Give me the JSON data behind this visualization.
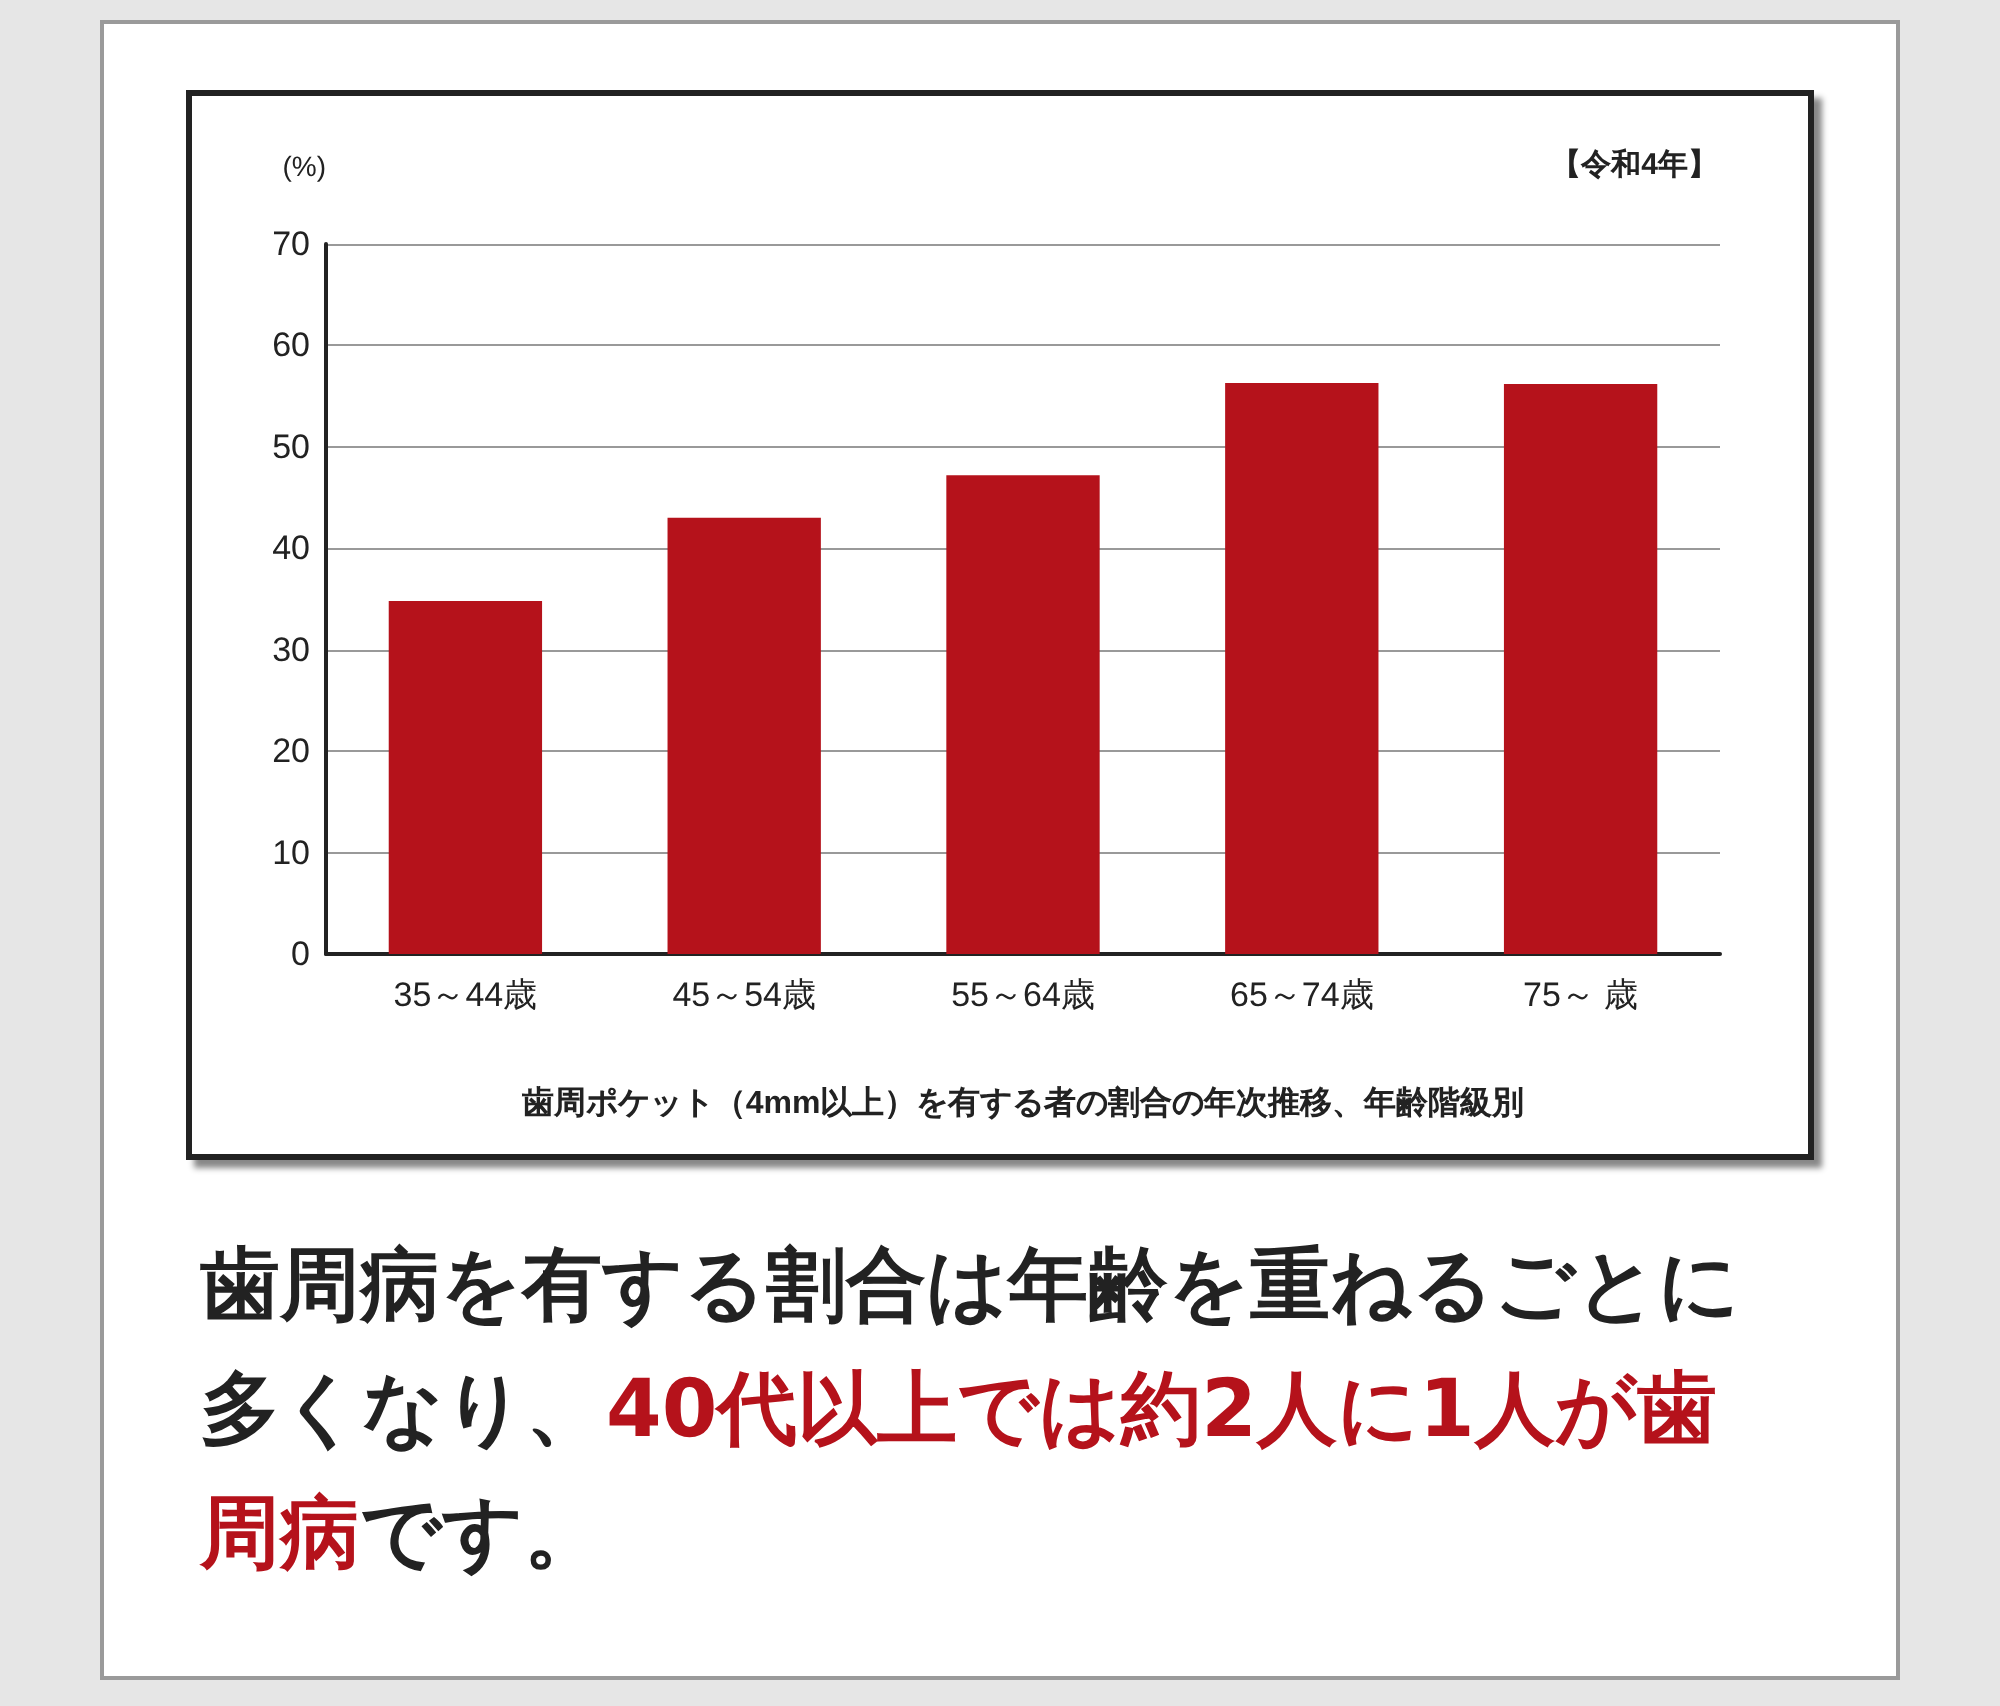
{
  "chart_data": {
    "type": "bar",
    "subtitle": "【令和4年】",
    "ylabel": "(%)",
    "xlabel": "歯周ポケット（4mm以上）を有する者の割合の年次推移、年齢階級別",
    "categories": [
      "35～44歳",
      "45～54歳",
      "55～64歳",
      "65～74歳",
      "75～ 歳"
    ],
    "values": [
      34.8,
      43.0,
      47.2,
      56.3,
      56.2
    ],
    "color": "#b5121b",
    "ylim": [
      0,
      70
    ],
    "yticks": [
      0,
      10,
      20,
      30,
      40,
      50,
      60,
      70
    ],
    "grid": "y",
    "annotations": [
      "歯周病を有する割合は年齢を重ねるごとに多くなり、",
      "40代以上では約2人に1人が歯周病",
      "です。"
    ]
  }
}
